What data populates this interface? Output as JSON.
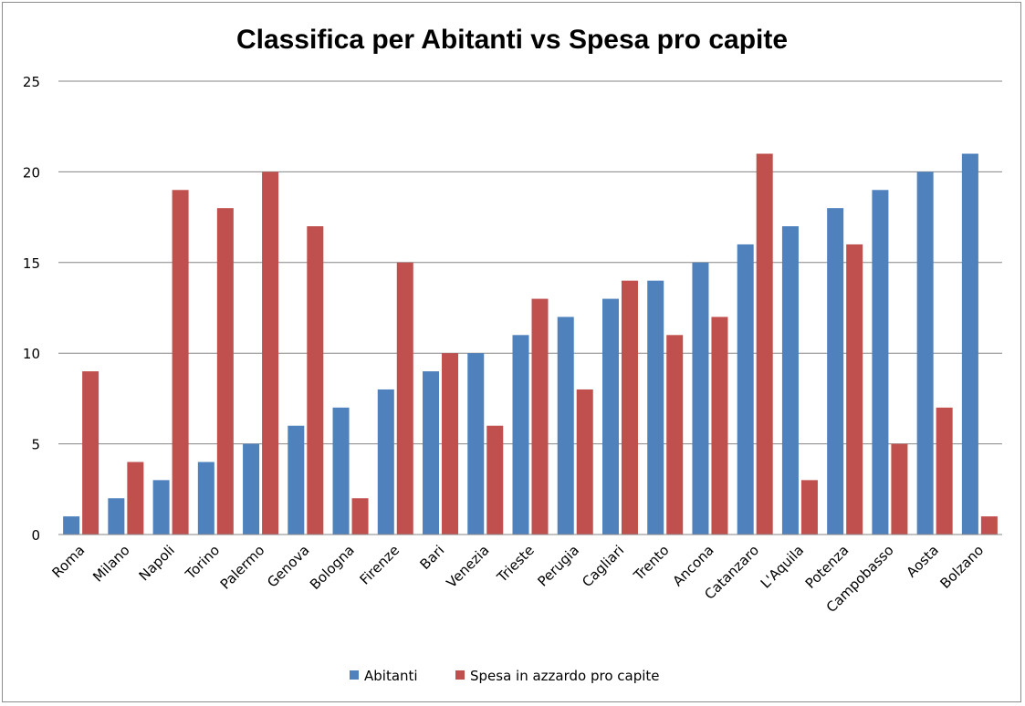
{
  "chart_data": {
    "type": "bar",
    "title": "Classifica per Abitanti vs Spesa pro capite",
    "xlabel": "",
    "ylabel": "",
    "ylim": [
      0,
      25
    ],
    "yticks": [
      0,
      5,
      10,
      15,
      20,
      25
    ],
    "grid": true,
    "legend_position": "bottom",
    "categories": [
      "Roma",
      "Milano",
      "Napoli",
      "Torino",
      "Palermo",
      "Genova",
      "Bologna",
      "Firenze",
      "Bari",
      "Venezia",
      "Trieste",
      "Perugia",
      "Cagliari",
      "Trento",
      "Ancona",
      "Catanzaro",
      "L'Aquila",
      "Potenza",
      "Campobasso",
      "Aosta",
      "Bolzano"
    ],
    "series": [
      {
        "name": "Abitanti",
        "color": "#4f81bd",
        "values": [
          1,
          2,
          3,
          4,
          5,
          6,
          7,
          8,
          9,
          10,
          11,
          12,
          13,
          14,
          15,
          16,
          17,
          18,
          19,
          20,
          21
        ]
      },
      {
        "name": "Spesa in azzardo pro capite",
        "color": "#c0504d",
        "values": [
          9,
          4,
          19,
          18,
          20,
          17,
          2,
          15,
          10,
          6,
          13,
          8,
          14,
          11,
          12,
          21,
          3,
          16,
          5,
          7,
          1
        ]
      }
    ]
  }
}
